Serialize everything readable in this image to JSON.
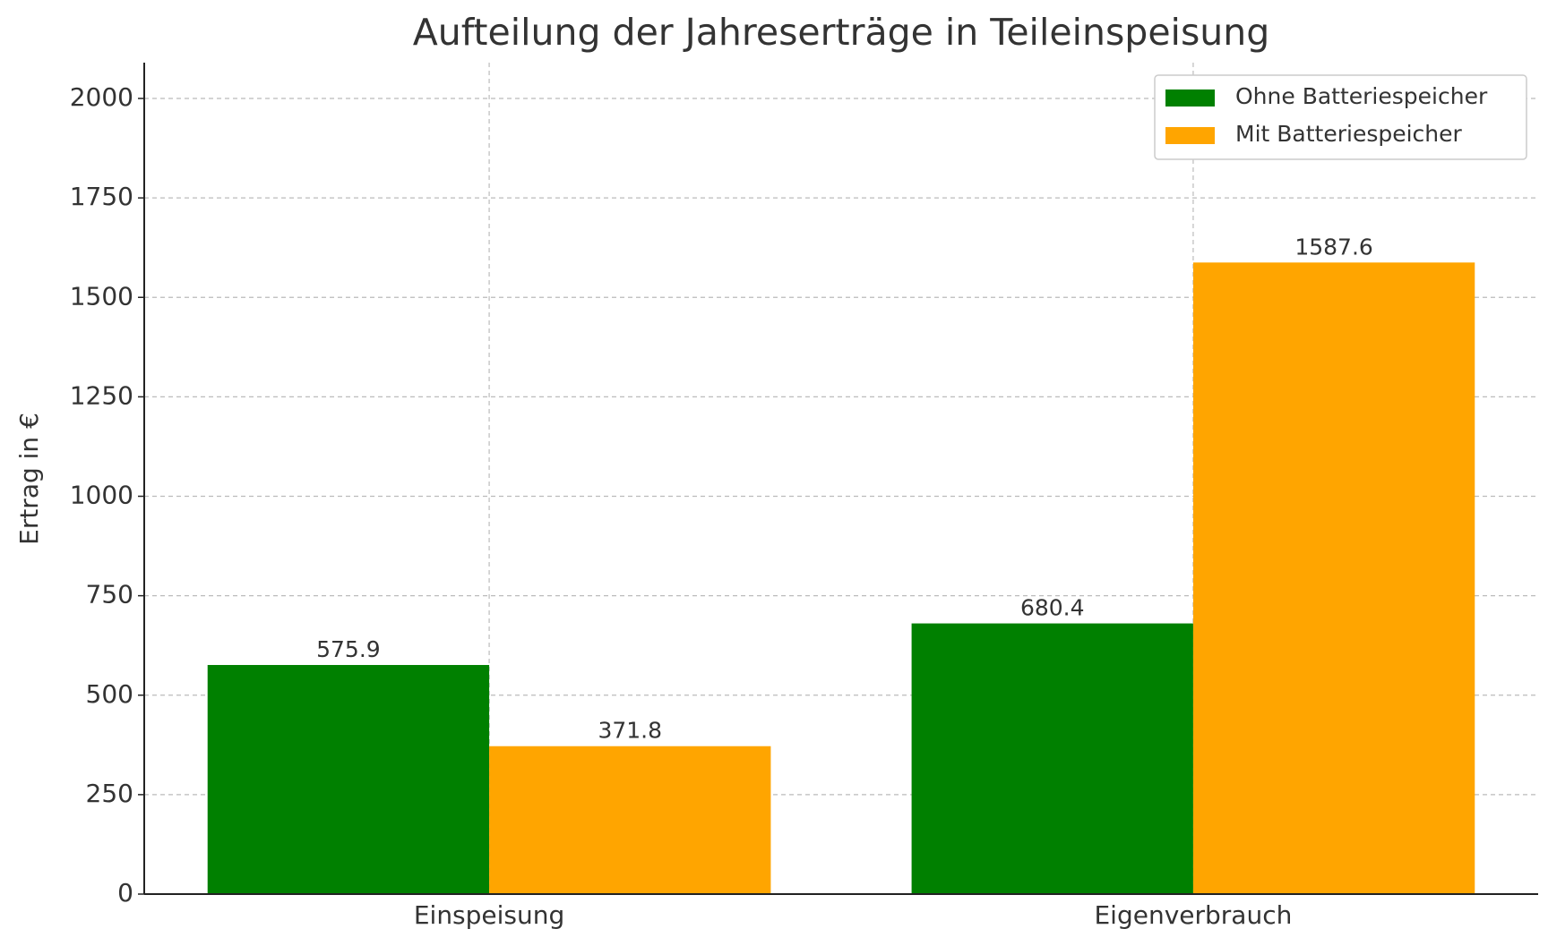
{
  "chart_data": {
    "type": "bar",
    "title": "Aufteilung der Jahreserträge in Teileinspeisung",
    "y_label": "Ertrag in €",
    "categories": [
      "Einspeisung",
      "Eigenverbrauch"
    ],
    "series": [
      {
        "name": "Ohne Batteriespeicher",
        "color": "#008000",
        "values": [
          575.9,
          680.4
        ]
      },
      {
        "name": "Mit Batteriespeicher",
        "color": "#ffa500",
        "values": [
          371.8,
          1587.6
        ]
      }
    ],
    "ylim": [
      0,
      2090
    ],
    "yticks": [
      0,
      250,
      500,
      750,
      1000,
      1250,
      1500,
      1750,
      2000
    ],
    "grid": true,
    "legend": "upper right"
  }
}
